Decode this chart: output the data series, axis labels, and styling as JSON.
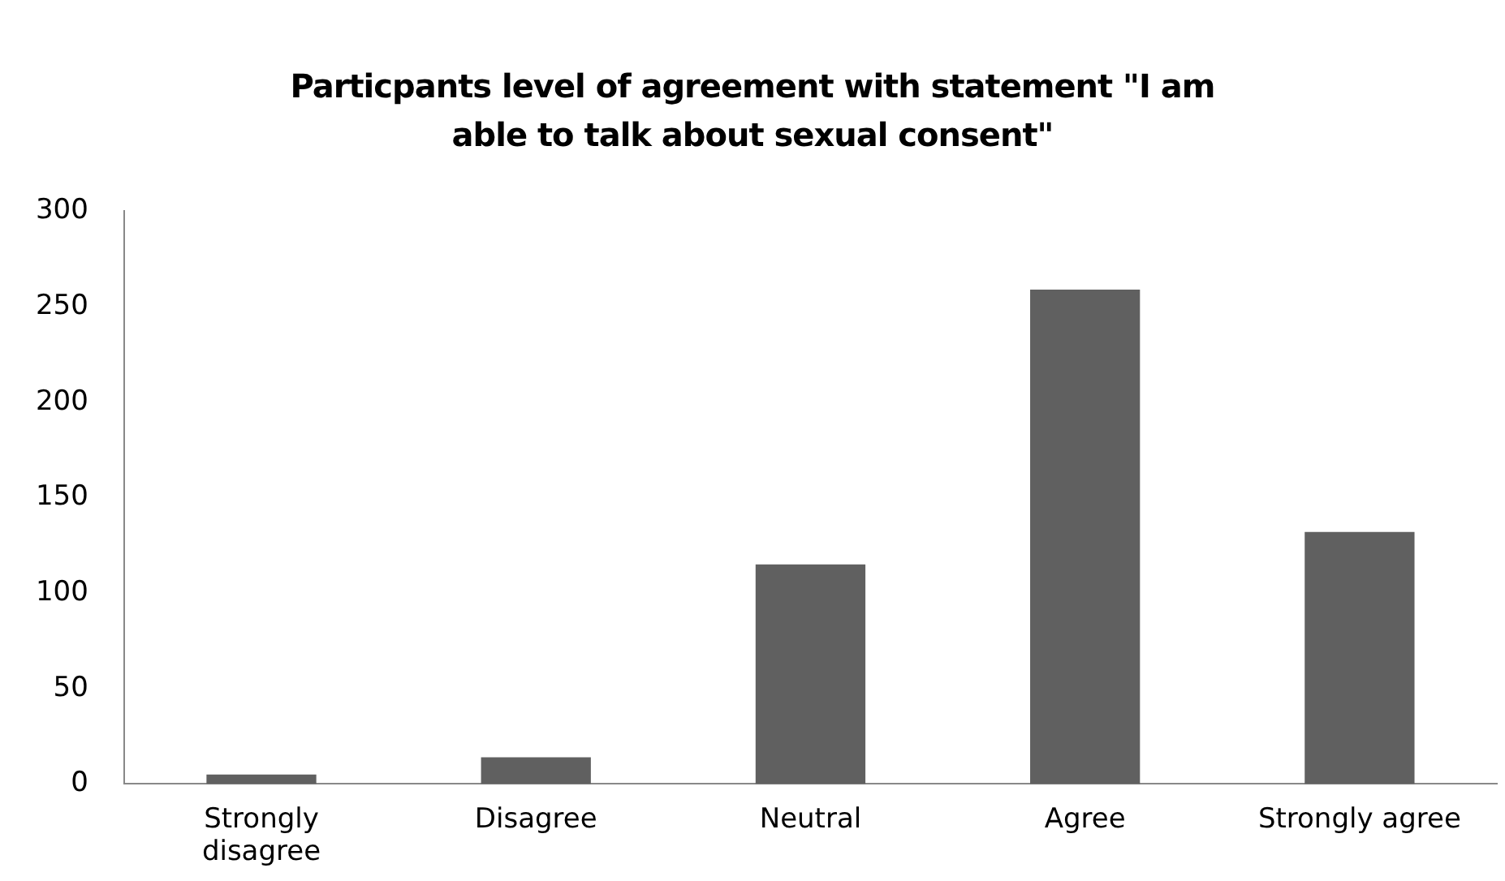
{
  "chart_data": {
    "type": "bar",
    "title": "Particpants level of agreement with statement \"I am able to talk about sexual consent\"",
    "categories": [
      "Strongly disagree",
      "Disagree",
      "Neutral",
      "Agree",
      "Strongly agree"
    ],
    "values": [
      5,
      14,
      115,
      259,
      132
    ],
    "color": "#606060",
    "ylim": [
      0,
      300
    ],
    "yticks": [
      0,
      50,
      100,
      150,
      200,
      250,
      300
    ],
    "grid": false
  }
}
